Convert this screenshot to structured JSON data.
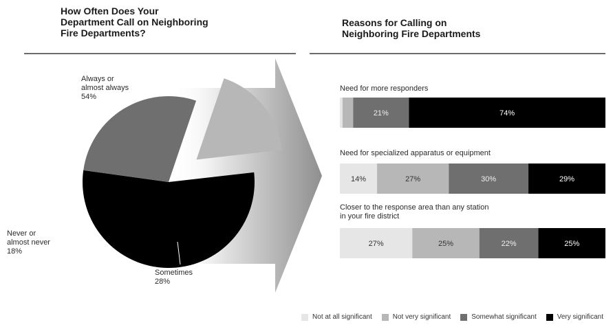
{
  "colors": {
    "not_at_all": "#e6e6e6",
    "not_very": "#b7b7b7",
    "somewhat": "#6f6f6f",
    "very": "#000000"
  },
  "chart_data": [
    {
      "type": "pie",
      "title": "How Often Does Your\nDepartment Call on Neighboring\nFire Departments?",
      "slices": [
        {
          "label_lines": [
            "Always or",
            "almost always",
            "54%"
          ],
          "value": 54,
          "color": "#000000"
        },
        {
          "label_lines": [
            "Sometimes",
            "28%"
          ],
          "value": 28,
          "color": "#6f6f6f"
        },
        {
          "label_lines": [
            "Never or",
            "almost never",
            "18%"
          ],
          "value": 18,
          "color": "#b7b7b7",
          "exploded": true
        }
      ]
    },
    {
      "type": "bar",
      "stacked": true,
      "orientation": "horizontal",
      "title": "Reasons for Calling on\nNeighboring Fire Departments",
      "series_names": [
        "Not at all significant",
        "Not very significant",
        "Somewhat significant",
        "Very significant"
      ],
      "categories": [
        {
          "label_lines": [
            "Need for more responders"
          ],
          "values": [
            1,
            4,
            21,
            74
          ],
          "labels": [
            "",
            "",
            "21%",
            "74%"
          ]
        },
        {
          "label_lines": [
            "Need for specialized apparatus or equipment"
          ],
          "values": [
            14,
            27,
            30,
            29
          ],
          "labels": [
            "14%",
            "27%",
            "30%",
            "29%"
          ]
        },
        {
          "label_lines": [
            "Closer to the response area than any station",
            "in your fire district"
          ],
          "values": [
            27,
            25,
            22,
            25
          ],
          "labels": [
            "27%",
            "25%",
            "22%",
            "25%"
          ]
        }
      ]
    }
  ],
  "legend": [
    {
      "label": "Not at all significant",
      "color": "#e6e6e6"
    },
    {
      "label": "Not very significant",
      "color": "#b7b7b7"
    },
    {
      "label": "Somewhat significant",
      "color": "#6f6f6f"
    },
    {
      "label": "Very significant",
      "color": "#000000"
    }
  ]
}
